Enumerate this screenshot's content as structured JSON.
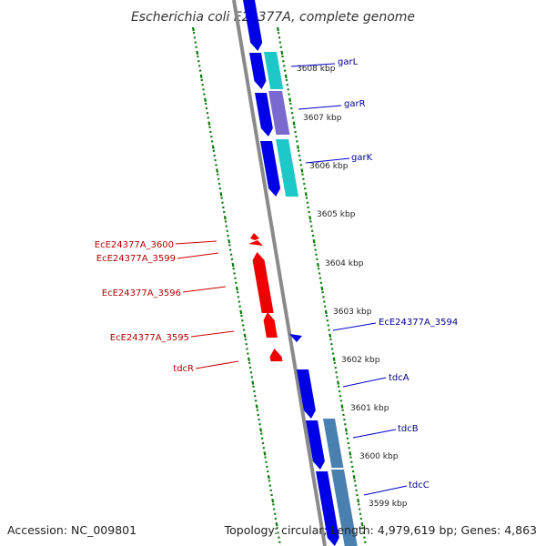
{
  "title": "Escherichia coli E24377A, complete genome",
  "footer": {
    "accession": "Accession: NC_009801",
    "summary": "Topology: circular; Length: 4,979,619 bp; Genes: 4,863"
  },
  "colors": {
    "backbone": "#888888",
    "forward_cds": "#0000ee",
    "reverse_cds": "#ee0000",
    "forward_label": "#00008b",
    "reverse_label": "#b00000",
    "tick": "#0a7a0a",
    "teal_feature": "#1ec8c8",
    "purple_feature": "#7a6ad0",
    "steel_feature": "#4a80b0"
  },
  "scale_labels": [
    "3608 kbp",
    "3607 kbp",
    "3606 kbp",
    "3605 kbp",
    "3604 kbp",
    "3603 kbp",
    "3602 kbp",
    "3601 kbp",
    "3600 kbp",
    "3599 kbp"
  ],
  "forward_genes": [
    "garL",
    "garR",
    "garK",
    "EcE24377A_3594",
    "tdcA",
    "tdcB",
    "tdcC"
  ],
  "reverse_genes": [
    "EcE24377A_3600",
    "EcE24377A_3599",
    "EcE24377A_3596",
    "EcE24377A_3595",
    "tdcR"
  ]
}
